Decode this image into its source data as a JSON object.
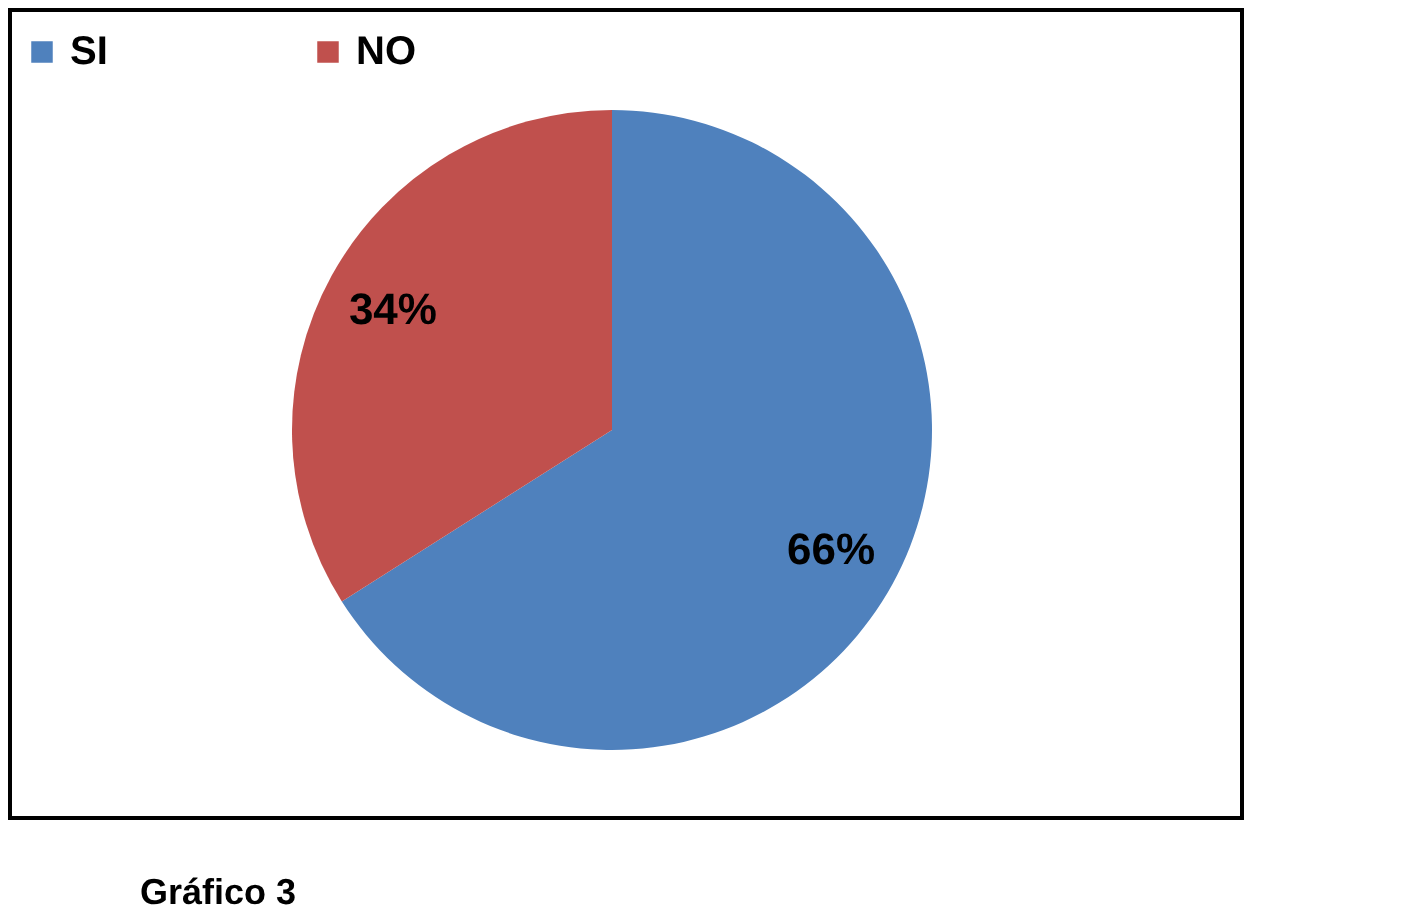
{
  "chart_data": {
    "type": "pie",
    "categories": [
      "SI",
      "NO"
    ],
    "values": [
      66,
      34
    ],
    "colors": [
      "#4f81bd",
      "#c0504d"
    ],
    "value_labels": [
      "66%",
      "34%"
    ],
    "legend": "top",
    "annotations": [
      "Gráfico 3"
    ]
  }
}
